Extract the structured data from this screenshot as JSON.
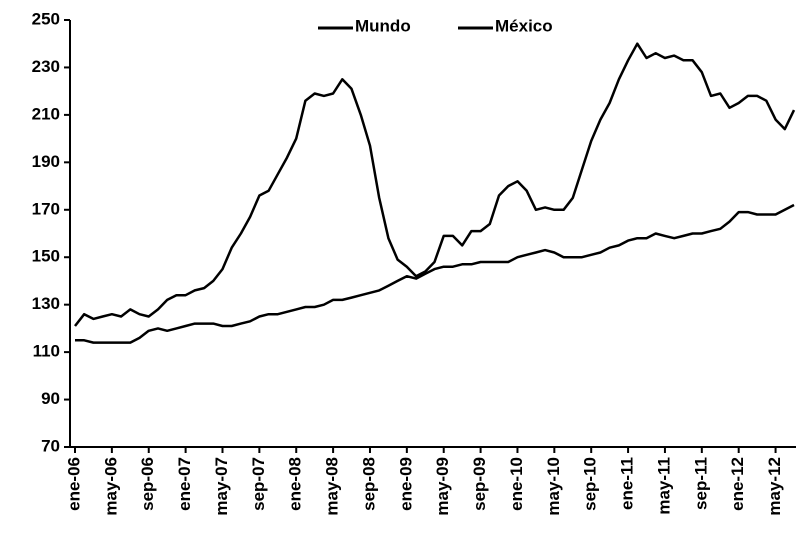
{
  "chart_data": {
    "type": "line",
    "categories": [
      "ene-06",
      null,
      null,
      null,
      "may-06",
      null,
      null,
      null,
      "sep-06",
      null,
      null,
      null,
      "ene-07",
      null,
      null,
      null,
      "may-07",
      null,
      null,
      null,
      "sep-07",
      null,
      null,
      null,
      "ene-08",
      null,
      null,
      null,
      "may-08",
      null,
      null,
      null,
      "sep-08",
      null,
      null,
      null,
      "ene-09",
      null,
      null,
      null,
      "may-09",
      null,
      null,
      null,
      "sep-09",
      null,
      null,
      null,
      "ene-10",
      null,
      null,
      null,
      "may-10",
      null,
      null,
      null,
      "sep-10",
      null,
      null,
      null,
      "ene-11",
      null,
      null,
      null,
      "may-11",
      null,
      null,
      null,
      "sep-11",
      null,
      null,
      null,
      "ene-12",
      null,
      null,
      null,
      "may-12",
      null,
      null
    ],
    "series": [
      {
        "name": "Mundo",
        "color": "#000000",
        "values": [
          121,
          126,
          124,
          125,
          126,
          125,
          128,
          126,
          125,
          128,
          132,
          134,
          134,
          136,
          137,
          140,
          145,
          154,
          160,
          167,
          176,
          178,
          185,
          192,
          200,
          216,
          219,
          218,
          219,
          225,
          221,
          210,
          197,
          175,
          158,
          149,
          146,
          142,
          144,
          148,
          159,
          159,
          155,
          161,
          161,
          164,
          176,
          180,
          182,
          178,
          170,
          171,
          170,
          170,
          175,
          187,
          199,
          208,
          215,
          225,
          233,
          240,
          234,
          236,
          234,
          235,
          233,
          233,
          228,
          218,
          219,
          213,
          215,
          218,
          218,
          216,
          208,
          204,
          212
        ]
      },
      {
        "name": "México",
        "color": "#000000",
        "values": [
          115,
          115,
          114,
          114,
          114,
          114,
          114,
          116,
          119,
          120,
          119,
          120,
          121,
          122,
          122,
          122,
          121,
          121,
          122,
          123,
          125,
          126,
          126,
          127,
          128,
          129,
          129,
          130,
          132,
          132,
          133,
          134,
          135,
          136,
          138,
          140,
          142,
          141,
          143,
          145,
          146,
          146,
          147,
          147,
          148,
          148,
          148,
          148,
          150,
          151,
          152,
          153,
          152,
          150,
          150,
          150,
          151,
          152,
          154,
          155,
          157,
          158,
          158,
          160,
          159,
          158,
          159,
          160,
          160,
          161,
          162,
          165,
          169,
          169,
          168,
          168,
          168,
          170,
          172
        ]
      }
    ],
    "ylim": [
      70,
      250
    ],
    "yticks": [
      70,
      90,
      110,
      130,
      150,
      170,
      190,
      210,
      230,
      250
    ]
  }
}
